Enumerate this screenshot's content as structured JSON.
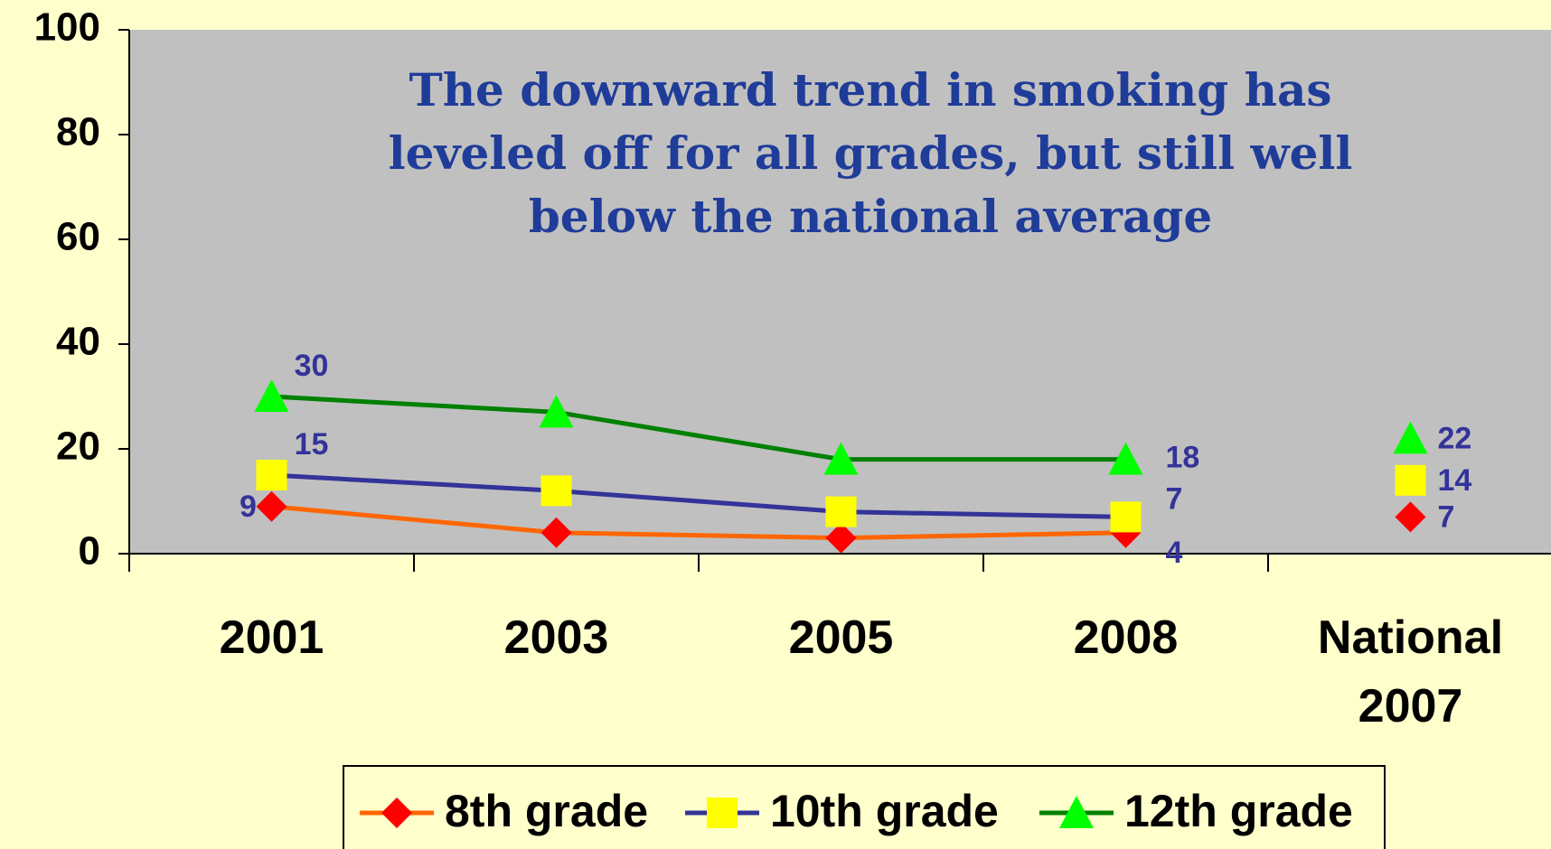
{
  "chart_data": {
    "type": "line",
    "annotation": [
      "The downward trend in smoking has",
      "leveled off for all grades, but still well",
      "below the national average"
    ],
    "categories": [
      "2001",
      "2003",
      "2005",
      "2008"
    ],
    "series": [
      {
        "name": "8th grade",
        "color": "#ff6600",
        "marker": "diamond",
        "marker_color": "#ff0000",
        "values": [
          9,
          4,
          3,
          4
        ],
        "value_labels": [
          "9",
          null,
          null,
          "4"
        ]
      },
      {
        "name": "10th grade",
        "color": "#333399",
        "marker": "square",
        "marker_color": "#ffff00",
        "values": [
          15,
          12,
          8,
          7
        ],
        "value_labels": [
          "15",
          null,
          null,
          "7"
        ]
      },
      {
        "name": "12th grade",
        "color": "#008000",
        "marker": "triangle",
        "marker_color": "#00ff00",
        "values": [
          30,
          27,
          18,
          18
        ],
        "value_labels": [
          "30",
          null,
          null,
          "18"
        ]
      }
    ],
    "national": {
      "category": "National 2007",
      "values": [
        7,
        14,
        22
      ]
    },
    "ylim": [
      0,
      100
    ],
    "yticks": [
      0,
      20,
      40,
      60,
      80,
      100
    ],
    "grid": false,
    "legend": "bottom"
  }
}
